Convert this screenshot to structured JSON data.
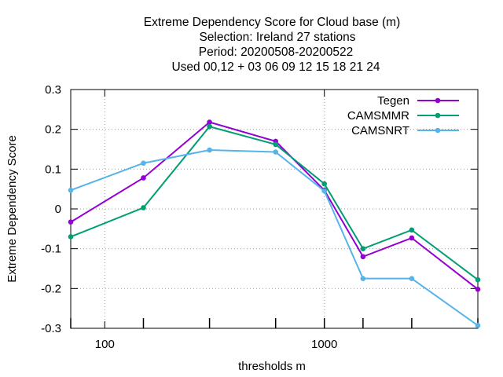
{
  "chart_data": {
    "type": "line",
    "title_lines": [
      "Extreme Dependency Score  for Cloud base (m)",
      "Selection: Ireland      27 stations",
      "Period: 20200508-20200522",
      "Used  00,12  + 03 06 09 12 15 18 21 24"
    ],
    "xlabel": "thresholds m",
    "ylabel": "Extreme Dependency Score",
    "x_scale": "log",
    "xlim": [
      70,
      5000
    ],
    "ylim": [
      -0.3,
      0.3
    ],
    "x_ticks": [
      100,
      1000
    ],
    "x_tick_labels": [
      "100",
      "1000"
    ],
    "y_ticks": [
      -0.3,
      -0.2,
      -0.1,
      0,
      0.1,
      0.2,
      0.3
    ],
    "y_tick_labels": [
      "-0.3",
      "-0.2",
      "-0.1",
      "0",
      "0.1",
      "0.2",
      "0.3"
    ],
    "grid": true,
    "legend_position": "top-right",
    "x": [
      70,
      150,
      300,
      600,
      1000,
      1500,
      2500,
      5000
    ],
    "series": [
      {
        "name": "Tegen",
        "color": "#9400d3",
        "values": [
          -0.033,
          0.078,
          0.218,
          0.17,
          0.047,
          -0.12,
          -0.073,
          -0.202
        ]
      },
      {
        "name": "CAMSMMR",
        "color": "#009e73",
        "values": [
          -0.07,
          0.003,
          0.207,
          0.162,
          0.063,
          -0.1,
          -0.053,
          -0.178
        ]
      },
      {
        "name": "CAMSNRT",
        "color": "#56b4e9",
        "values": [
          0.047,
          0.115,
          0.148,
          0.143,
          0.045,
          -0.175,
          -0.175,
          -0.293
        ]
      }
    ]
  }
}
